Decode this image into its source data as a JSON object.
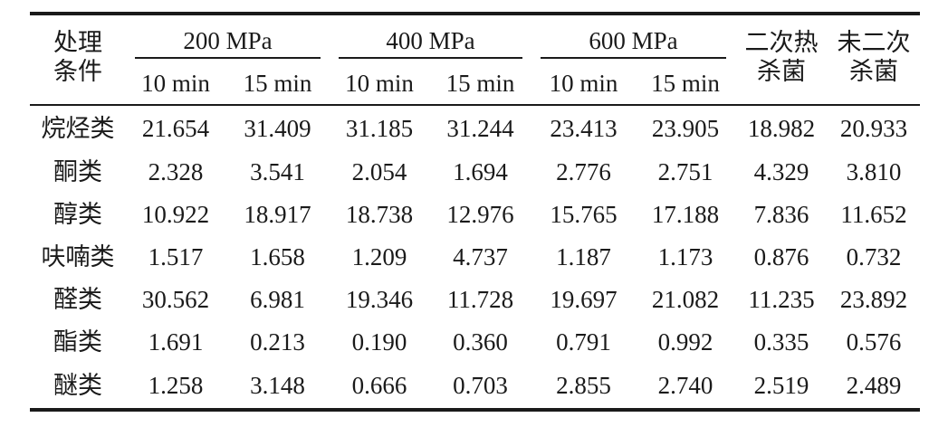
{
  "table": {
    "condition_header": [
      "处理",
      "条件"
    ],
    "groups": [
      {
        "label": "200 MPa",
        "sub": [
          "10 min",
          "15 min"
        ]
      },
      {
        "label": "400 MPa",
        "sub": [
          "10 min",
          "15 min"
        ]
      },
      {
        "label": "600 MPa",
        "sub": [
          "10 min",
          "15 min"
        ]
      }
    ],
    "extra_headers": [
      [
        "二次热",
        "杀菌"
      ],
      [
        "未二次",
        "杀菌"
      ]
    ],
    "rows": [
      {
        "label": "烷烃类",
        "values": [
          "21.654",
          "31.409",
          "31.185",
          "31.244",
          "23.413",
          "23.905",
          "18.982",
          "20.933"
        ]
      },
      {
        "label": "酮类",
        "values": [
          "2.328",
          "3.541",
          "2.054",
          "1.694",
          "2.776",
          "2.751",
          "4.329",
          "3.810"
        ]
      },
      {
        "label": "醇类",
        "values": [
          "10.922",
          "18.917",
          "18.738",
          "12.976",
          "15.765",
          "17.188",
          "7.836",
          "11.652"
        ]
      },
      {
        "label": "呋喃类",
        "values": [
          "1.517",
          "1.658",
          "1.209",
          "4.737",
          "1.187",
          "1.173",
          "0.876",
          "0.732"
        ]
      },
      {
        "label": "醛类",
        "values": [
          "30.562",
          "6.981",
          "19.346",
          "11.728",
          "19.697",
          "21.082",
          "11.235",
          "23.892"
        ]
      },
      {
        "label": "酯类",
        "values": [
          "1.691",
          "0.213",
          "0.190",
          "0.360",
          "0.791",
          "0.992",
          "0.335",
          "0.576"
        ]
      },
      {
        "label": "醚类",
        "values": [
          "1.258",
          "3.148",
          "0.666",
          "0.703",
          "2.855",
          "2.740",
          "2.519",
          "2.489"
        ]
      }
    ]
  }
}
